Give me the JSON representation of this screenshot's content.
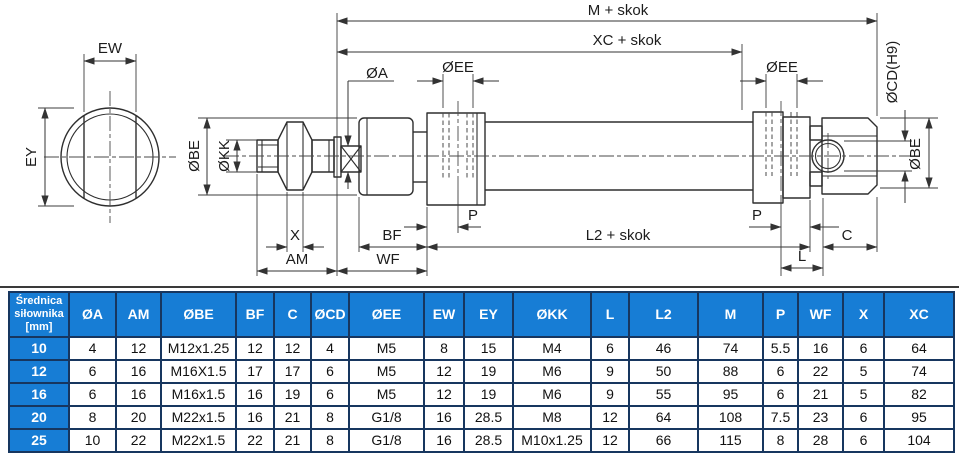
{
  "diagram": {
    "labels": {
      "m_skok": "M + skok",
      "xc_skok": "XC + skok",
      "oa": "ØA",
      "oee_left": "ØEE",
      "oee_right": "ØEE",
      "ocd_h9": "ØCD(H9)",
      "obe_left": "ØBE",
      "okk": "ØKK",
      "obe_right": "ØBE",
      "ew": "EW",
      "ey": "EY",
      "x": "X",
      "am": "AM",
      "bf": "BF",
      "wf": "WF",
      "p_front": "P",
      "p_rear": "P",
      "l2_skok": "L2 + skok",
      "l": "L",
      "c": "C"
    }
  },
  "table": {
    "header_first": "Średnica siłownika [mm]",
    "columns": [
      "ØA",
      "AM",
      "ØBE",
      "BF",
      "C",
      "ØCD",
      "ØEE",
      "EW",
      "EY",
      "ØKK",
      "L",
      "L2",
      "M",
      "P",
      "WF",
      "X",
      "XC"
    ],
    "rows": [
      {
        "size": "10",
        "values": [
          "4",
          "12",
          "M12x1.25",
          "12",
          "12",
          "4",
          "M5",
          "8",
          "15",
          "M4",
          "6",
          "46",
          "74",
          "5.5",
          "16",
          "6",
          "64"
        ]
      },
      {
        "size": "12",
        "values": [
          "6",
          "16",
          "M16X1.5",
          "17",
          "17",
          "6",
          "M5",
          "12",
          "19",
          "M6",
          "9",
          "50",
          "88",
          "6",
          "22",
          "5",
          "74"
        ]
      },
      {
        "size": "16",
        "values": [
          "6",
          "16",
          "M16x1.5",
          "16",
          "19",
          "6",
          "M5",
          "12",
          "19",
          "M6",
          "9",
          "55",
          "95",
          "6",
          "21",
          "5",
          "82"
        ]
      },
      {
        "size": "20",
        "values": [
          "8",
          "20",
          "M22x1.5",
          "16",
          "21",
          "8",
          "G1/8",
          "16",
          "28.5",
          "M8",
          "12",
          "64",
          "108",
          "7.5",
          "23",
          "6",
          "95"
        ]
      },
      {
        "size": "25",
        "values": [
          "10",
          "22",
          "M22x1.5",
          "22",
          "21",
          "8",
          "G1/8",
          "16",
          "28.5",
          "M10x1.25",
          "12",
          "66",
          "115",
          "8",
          "28",
          "6",
          "104"
        ]
      }
    ]
  },
  "colors": {
    "table_header_blue": "#177dd5",
    "table_border_navy": "#17365f",
    "drawing_line": "#2e2e2e",
    "text_white": "#ffffff",
    "text_black": "#111111"
  }
}
